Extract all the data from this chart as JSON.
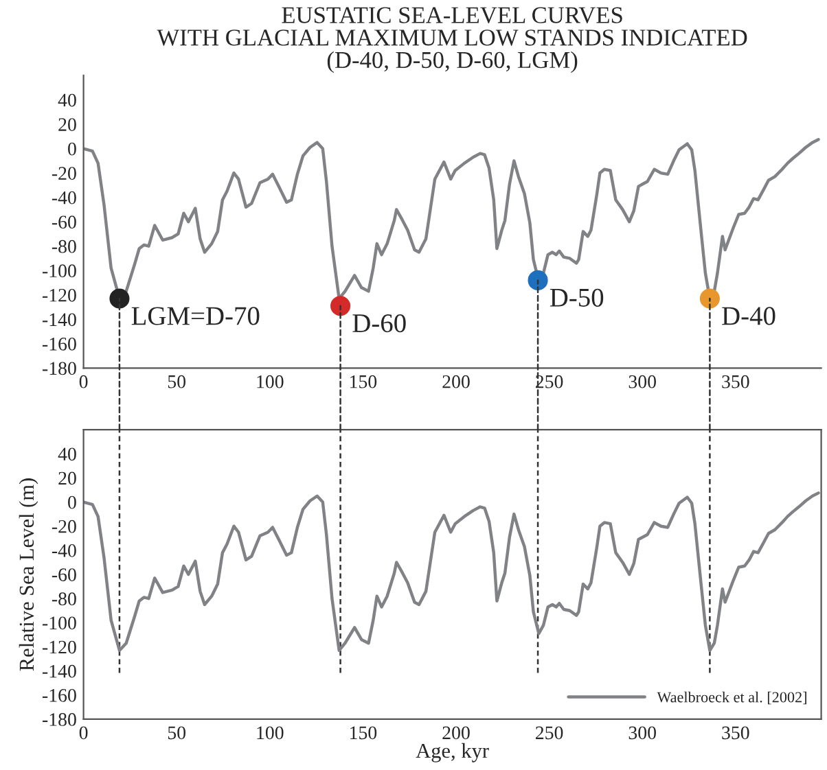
{
  "chart_data": [
    {
      "type": "line",
      "title": "EUSTATIC SEA-LEVEL CURVES\nWITH GLACIAL MAXIMUM LOW STANDS INDICATED\n(D-40, D-50, D-60, LGM)",
      "xlim": [
        0,
        396
      ],
      "ylim": [
        -180,
        60
      ],
      "xticks": [
        0,
        50,
        100,
        150,
        200,
        250,
        300,
        350
      ],
      "yticks": [
        -180,
        -160,
        -140,
        -120,
        -100,
        -80,
        -60,
        -40,
        -20,
        0,
        20,
        40
      ],
      "grid": false,
      "legend": false,
      "series": [
        {
          "color": "#808286",
          "x": [
            0,
            4.8,
            7.8,
            11,
            14.8,
            19.3,
            22.9,
            27.4,
            29.9,
            32.4,
            35,
            38.2,
            42.5,
            47.5,
            50.8,
            53.8,
            56.3,
            60,
            62.6,
            65,
            68.8,
            72,
            74.6,
            77,
            80.7,
            83.2,
            87.2,
            90.2,
            94.7,
            99,
            101.5,
            104.8,
            109,
            111.6,
            114.8,
            117.8,
            121.6,
            125.4,
            128.4,
            130.4,
            133.4,
            137.2,
            140.4,
            145.5,
            149.2,
            153,
            155.5,
            157.5,
            160,
            163,
            166.8,
            168,
            170.6,
            174,
            177.7,
            180.1,
            183.8,
            188.6,
            193.5,
            197.1,
            199.5,
            204.4,
            209.2,
            212.9,
            215.3,
            217.7,
            220.2,
            221.9,
            224.5,
            226.2,
            228.7,
            231.1,
            233.5,
            236.7,
            239.6,
            241.5,
            244.4,
            246.9,
            249.3,
            251.7,
            253.7,
            255.4,
            257.8,
            261,
            264.6,
            265.8,
            268.2,
            270.7,
            272.4,
            275.5,
            277.2,
            279.6,
            282.8,
            285.7,
            289.4,
            293,
            295.4,
            297.9,
            300.3,
            302.7,
            306.4,
            310,
            313.6,
            316.8,
            319.7,
            324.1,
            326.5,
            328.2,
            331.3,
            333.8,
            336.2,
            338.6,
            340.3,
            343,
            344.4,
            348.8,
            351.7,
            354.9,
            357.3,
            359.7,
            362.1,
            365.3,
            367.7,
            371.1,
            375,
            377.9,
            380.8,
            384,
            387.7,
            391.3,
            394.5
          ],
          "values": [
            0,
            -2,
            -12,
            -46,
            -98,
            -123,
            -117,
            -95,
            -82,
            -79,
            -80,
            -63,
            -75,
            -73,
            -70,
            -53,
            -60,
            -49,
            -74,
            -85,
            -78,
            -68,
            -42,
            -35,
            -20,
            -25,
            -48,
            -45,
            -28,
            -25,
            -21,
            -31,
            -44,
            -42,
            -21,
            -6,
            1,
            5,
            0,
            -27,
            -80,
            -123,
            -117,
            -104,
            -114,
            -117,
            -98,
            -78,
            -87,
            -78,
            -59,
            -50,
            -57,
            -67,
            -83,
            -85,
            -74,
            -25,
            -11,
            -25,
            -18,
            -12,
            -7,
            -4,
            -5,
            -16,
            -42,
            -82,
            -67,
            -59,
            -29,
            -10,
            -23,
            -37,
            -61,
            -91,
            -109,
            -102,
            -87,
            -85,
            -87,
            -84,
            -89,
            -90,
            -94,
            -91,
            -68,
            -72,
            -67,
            -38,
            -20,
            -17,
            -18,
            -42,
            -50,
            -60,
            -51,
            -31,
            -29,
            -27,
            -17,
            -20,
            -21,
            -10,
            -1,
            4,
            -1,
            -18,
            -65,
            -102,
            -123,
            -117,
            -102,
            -72,
            -83,
            -65,
            -54,
            -53,
            -48,
            -41,
            -42,
            -33,
            -26,
            -23,
            -17,
            -12,
            -8,
            -4,
            1,
            5,
            7.5
          ]
        },
        {
          "type": "scatter",
          "x": [
            19.3,
            137.9,
            243.9,
            336.2
          ],
          "values": [
            -123,
            -129,
            -108,
            -123
          ],
          "colors": [
            "#222222",
            "#d42a2a",
            "#1f6fbf",
            "#e8962e"
          ]
        }
      ],
      "annotations": [
        {
          "text": "LGM=D-70",
          "x": 19.3,
          "y": -123
        },
        {
          "text": "D-60",
          "x": 137.9,
          "y": -129
        },
        {
          "text": "D-50",
          "x": 243.9,
          "y": -108
        },
        {
          "text": "D-40",
          "x": 336.2,
          "y": -123
        }
      ]
    },
    {
      "type": "line",
      "xlabel": "Age, kyr",
      "ylabel": "Relative Sea Level (m)",
      "xlim": [
        0,
        396
      ],
      "ylim": [
        -180,
        60
      ],
      "xticks": [
        0,
        50,
        100,
        150,
        200,
        250,
        300,
        350
      ],
      "yticks": [
        -180,
        -160,
        -140,
        -120,
        -100,
        -80,
        -60,
        -40,
        -20,
        0,
        20,
        40
      ],
      "grid": false,
      "legend": "bottom right",
      "series": [
        {
          "name": "Waelbroeck et al. [2002]",
          "color": "#808286",
          "x": [
            0,
            4.8,
            7.8,
            11,
            14.8,
            19.3,
            22.9,
            27.4,
            29.9,
            32.4,
            35,
            38.2,
            42.5,
            47.5,
            50.8,
            53.8,
            56.3,
            60,
            62.6,
            65,
            68.8,
            72,
            74.6,
            77,
            80.7,
            83.2,
            87.2,
            90.2,
            94.7,
            99,
            101.5,
            104.8,
            109,
            111.6,
            114.8,
            117.8,
            121.6,
            125.4,
            128.4,
            130.4,
            133.4,
            137.2,
            140.4,
            145.5,
            149.2,
            153,
            155.5,
            157.5,
            160,
            163,
            166.8,
            168,
            170.6,
            174,
            177.7,
            180.1,
            183.8,
            188.6,
            193.5,
            197.1,
            199.5,
            204.4,
            209.2,
            212.9,
            215.3,
            217.7,
            220.2,
            221.9,
            224.5,
            226.2,
            228.7,
            231.1,
            233.5,
            236.7,
            239.6,
            241.5,
            244.4,
            246.9,
            249.3,
            251.7,
            253.7,
            255.4,
            257.8,
            261,
            264.6,
            265.8,
            268.2,
            270.7,
            272.4,
            275.5,
            277.2,
            279.6,
            282.8,
            285.7,
            289.4,
            293,
            295.4,
            297.9,
            300.3,
            302.7,
            306.4,
            310,
            313.6,
            316.8,
            319.7,
            324.1,
            326.5,
            328.2,
            331.3,
            333.8,
            336.2,
            338.6,
            340.3,
            343,
            344.4,
            348.8,
            351.7,
            354.9,
            357.3,
            359.7,
            362.1,
            365.3,
            367.7,
            371.1,
            375,
            377.9,
            380.8,
            384,
            387.7,
            391.3,
            394.5
          ],
          "values": [
            0,
            -2,
            -12,
            -46,
            -98,
            -123,
            -117,
            -95,
            -82,
            -79,
            -80,
            -63,
            -75,
            -73,
            -70,
            -53,
            -60,
            -49,
            -74,
            -85,
            -78,
            -68,
            -42,
            -35,
            -20,
            -25,
            -48,
            -45,
            -28,
            -25,
            -21,
            -31,
            -44,
            -42,
            -21,
            -6,
            1,
            5,
            0,
            -27,
            -80,
            -123,
            -117,
            -104,
            -114,
            -117,
            -98,
            -78,
            -87,
            -78,
            -59,
            -50,
            -57,
            -67,
            -83,
            -85,
            -74,
            -25,
            -11,
            -25,
            -18,
            -12,
            -7,
            -4,
            -5,
            -16,
            -42,
            -82,
            -67,
            -59,
            -29,
            -10,
            -23,
            -37,
            -61,
            -91,
            -109,
            -102,
            -87,
            -85,
            -87,
            -84,
            -89,
            -90,
            -94,
            -91,
            -68,
            -72,
            -67,
            -38,
            -20,
            -17,
            -18,
            -42,
            -50,
            -60,
            -51,
            -31,
            -29,
            -27,
            -17,
            -20,
            -21,
            -10,
            -1,
            4,
            -1,
            -18,
            -65,
            -102,
            -123,
            -117,
            -102,
            -72,
            -83,
            -65,
            -54,
            -53,
            -48,
            -41,
            -42,
            -33,
            -26,
            -23,
            -17,
            -12,
            -8,
            -4,
            1,
            5,
            7.5
          ]
        }
      ],
      "ref_lines": [
        {
          "axis": "x",
          "value": 19.3,
          "color": "#333333",
          "line_style": "dashed"
        },
        {
          "axis": "x",
          "value": 137.9,
          "color": "#333333",
          "line_style": "dashed"
        },
        {
          "axis": "x",
          "value": 243.9,
          "color": "#333333",
          "line_style": "dashed"
        },
        {
          "axis": "x",
          "value": 336.2,
          "color": "#333333",
          "line_style": "dashed"
        }
      ]
    }
  ]
}
